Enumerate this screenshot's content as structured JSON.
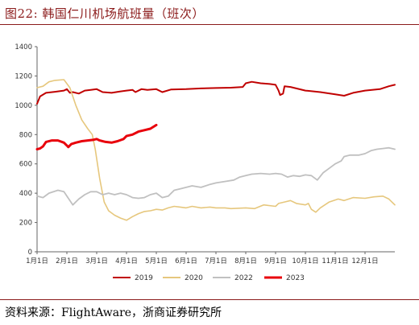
{
  "title": "图22:  韩国仁川机场航班量（班次）",
  "source": "资料来源：FlightAware，浙商证券研究所",
  "chart_data": {
    "type": "line",
    "title": "",
    "xlabel": "",
    "ylabel": "",
    "ylim": [
      0,
      1400
    ],
    "yticks": [
      0,
      200,
      400,
      600,
      800,
      1000,
      1200,
      1400
    ],
    "xlim": [
      0,
      12
    ],
    "xticks": [
      {
        "x": 0,
        "label": "1月1日"
      },
      {
        "x": 1,
        "label": "2月1日"
      },
      {
        "x": 2,
        "label": "3月1日"
      },
      {
        "x": 3,
        "label": "4月1日"
      },
      {
        "x": 4,
        "label": "5月1日"
      },
      {
        "x": 5,
        "label": "6月1日"
      },
      {
        "x": 6,
        "label": "7月1日"
      },
      {
        "x": 7,
        "label": "8月1日"
      },
      {
        "x": 8,
        "label": "9月1日"
      },
      {
        "x": 9,
        "label": "10月1日"
      },
      {
        "x": 10,
        "label": "11月1日"
      },
      {
        "x": 11,
        "label": "12月1日"
      }
    ],
    "grid": false,
    "legend_position": "bottom",
    "series": [
      {
        "name": "2019",
        "color": "#c00000",
        "width": 2,
        "points": [
          [
            0,
            1010
          ],
          [
            0.1,
            1060
          ],
          [
            0.3,
            1085
          ],
          [
            0.6,
            1092
          ],
          [
            0.9,
            1100
          ],
          [
            1.0,
            1110
          ],
          [
            1.1,
            1085
          ],
          [
            1.2,
            1090
          ],
          [
            1.4,
            1080
          ],
          [
            1.6,
            1100
          ],
          [
            1.8,
            1105
          ],
          [
            2.0,
            1110
          ],
          [
            2.2,
            1090
          ],
          [
            2.5,
            1085
          ],
          [
            2.8,
            1095
          ],
          [
            3.0,
            1100
          ],
          [
            3.2,
            1105
          ],
          [
            3.3,
            1090
          ],
          [
            3.5,
            1110
          ],
          [
            3.7,
            1105
          ],
          [
            4.0,
            1110
          ],
          [
            4.2,
            1090
          ],
          [
            4.5,
            1108
          ],
          [
            5.0,
            1110
          ],
          [
            5.5,
            1115
          ],
          [
            6.0,
            1118
          ],
          [
            6.5,
            1120
          ],
          [
            6.9,
            1125
          ],
          [
            7.0,
            1150
          ],
          [
            7.2,
            1160
          ],
          [
            7.5,
            1150
          ],
          [
            7.8,
            1145
          ],
          [
            8.0,
            1140
          ],
          [
            8.1,
            1100
          ],
          [
            8.15,
            1070
          ],
          [
            8.25,
            1080
          ],
          [
            8.3,
            1130
          ],
          [
            8.5,
            1125
          ],
          [
            9.0,
            1100
          ],
          [
            9.5,
            1090
          ],
          [
            10.0,
            1075
          ],
          [
            10.3,
            1065
          ],
          [
            10.6,
            1085
          ],
          [
            11.0,
            1100
          ],
          [
            11.5,
            1110
          ],
          [
            11.8,
            1130
          ],
          [
            12.0,
            1140
          ]
        ]
      },
      {
        "name": "2020",
        "color": "#e6c77d",
        "width": 1.6,
        "points": [
          [
            0,
            1120
          ],
          [
            0.2,
            1130
          ],
          [
            0.4,
            1160
          ],
          [
            0.6,
            1170
          ],
          [
            0.9,
            1175
          ],
          [
            1.1,
            1120
          ],
          [
            1.3,
            1000
          ],
          [
            1.5,
            900
          ],
          [
            1.7,
            840
          ],
          [
            1.85,
            800
          ],
          [
            1.95,
            700
          ],
          [
            2.1,
            500
          ],
          [
            2.25,
            340
          ],
          [
            2.4,
            280
          ],
          [
            2.6,
            250
          ],
          [
            2.8,
            230
          ],
          [
            3.0,
            215
          ],
          [
            3.2,
            240
          ],
          [
            3.4,
            260
          ],
          [
            3.6,
            275
          ],
          [
            3.8,
            280
          ],
          [
            4.0,
            290
          ],
          [
            4.2,
            285
          ],
          [
            4.4,
            300
          ],
          [
            4.6,
            310
          ],
          [
            4.8,
            305
          ],
          [
            5.0,
            300
          ],
          [
            5.2,
            310
          ],
          [
            5.5,
            300
          ],
          [
            5.8,
            305
          ],
          [
            6.0,
            300
          ],
          [
            6.3,
            300
          ],
          [
            6.5,
            295
          ],
          [
            7.0,
            300
          ],
          [
            7.3,
            295
          ],
          [
            7.6,
            320
          ],
          [
            8.0,
            310
          ],
          [
            8.1,
            330
          ],
          [
            8.3,
            340
          ],
          [
            8.5,
            350
          ],
          [
            8.7,
            330
          ],
          [
            9.0,
            320
          ],
          [
            9.1,
            330
          ],
          [
            9.2,
            290
          ],
          [
            9.35,
            270
          ],
          [
            9.5,
            300
          ],
          [
            9.8,
            340
          ],
          [
            10.1,
            360
          ],
          [
            10.3,
            350
          ],
          [
            10.6,
            370
          ],
          [
            11.0,
            365
          ],
          [
            11.3,
            375
          ],
          [
            11.6,
            380
          ],
          [
            11.8,
            360
          ],
          [
            12.0,
            320
          ]
        ]
      },
      {
        "name": "2022",
        "color": "#c0c0c0",
        "width": 1.8,
        "points": [
          [
            0,
            380
          ],
          [
            0.2,
            370
          ],
          [
            0.4,
            400
          ],
          [
            0.7,
            420
          ],
          [
            0.9,
            410
          ],
          [
            1.1,
            350
          ],
          [
            1.2,
            320
          ],
          [
            1.4,
            360
          ],
          [
            1.6,
            390
          ],
          [
            1.8,
            410
          ],
          [
            2.0,
            410
          ],
          [
            2.2,
            390
          ],
          [
            2.4,
            400
          ],
          [
            2.6,
            390
          ],
          [
            2.8,
            400
          ],
          [
            3.0,
            390
          ],
          [
            3.2,
            370
          ],
          [
            3.4,
            365
          ],
          [
            3.6,
            370
          ],
          [
            3.8,
            390
          ],
          [
            4.0,
            400
          ],
          [
            4.2,
            370
          ],
          [
            4.4,
            380
          ],
          [
            4.6,
            420
          ],
          [
            4.8,
            430
          ],
          [
            5.0,
            440
          ],
          [
            5.2,
            450
          ],
          [
            5.5,
            440
          ],
          [
            5.8,
            460
          ],
          [
            6.0,
            470
          ],
          [
            6.3,
            480
          ],
          [
            6.6,
            490
          ],
          [
            6.8,
            510
          ],
          [
            7.0,
            520
          ],
          [
            7.2,
            530
          ],
          [
            7.5,
            535
          ],
          [
            7.8,
            530
          ],
          [
            8.0,
            535
          ],
          [
            8.2,
            530
          ],
          [
            8.4,
            510
          ],
          [
            8.6,
            520
          ],
          [
            8.8,
            515
          ],
          [
            9.0,
            525
          ],
          [
            9.2,
            520
          ],
          [
            9.4,
            490
          ],
          [
            9.6,
            540
          ],
          [
            9.8,
            570
          ],
          [
            10.0,
            600
          ],
          [
            10.2,
            620
          ],
          [
            10.3,
            650
          ],
          [
            10.5,
            660
          ],
          [
            10.8,
            660
          ],
          [
            11.0,
            670
          ],
          [
            11.2,
            690
          ],
          [
            11.4,
            700
          ],
          [
            11.6,
            705
          ],
          [
            11.8,
            710
          ],
          [
            12.0,
            700
          ]
        ]
      },
      {
        "name": "2023",
        "color": "#e8000b",
        "width": 3,
        "points": [
          [
            0,
            700
          ],
          [
            0.1,
            705
          ],
          [
            0.2,
            720
          ],
          [
            0.3,
            750
          ],
          [
            0.5,
            760
          ],
          [
            0.7,
            760
          ],
          [
            0.9,
            745
          ],
          [
            1.0,
            725
          ],
          [
            1.05,
            715
          ],
          [
            1.15,
            735
          ],
          [
            1.3,
            745
          ],
          [
            1.5,
            755
          ],
          [
            1.7,
            760
          ],
          [
            1.9,
            765
          ],
          [
            2.0,
            770
          ],
          [
            2.1,
            760
          ],
          [
            2.3,
            750
          ],
          [
            2.5,
            745
          ],
          [
            2.7,
            755
          ],
          [
            2.9,
            770
          ],
          [
            3.0,
            790
          ],
          [
            3.2,
            800
          ],
          [
            3.4,
            820
          ],
          [
            3.6,
            830
          ],
          [
            3.8,
            840
          ],
          [
            4.0,
            865
          ]
        ]
      }
    ]
  }
}
